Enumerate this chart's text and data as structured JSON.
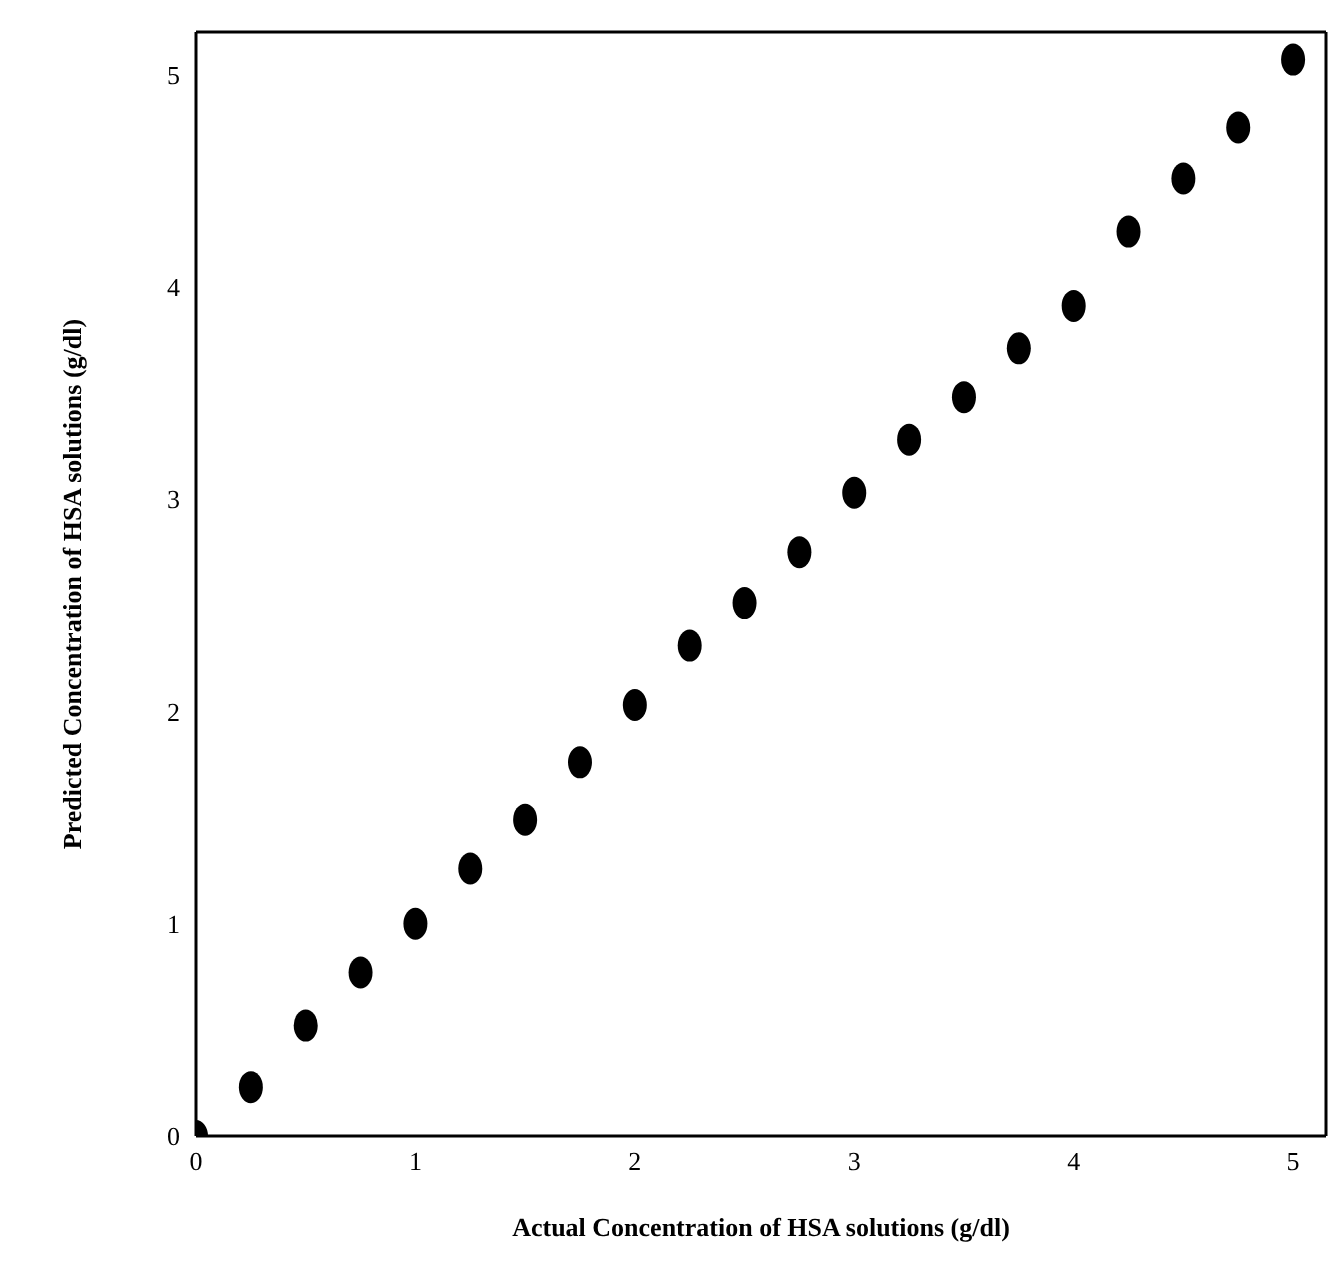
{
  "chart_data": {
    "type": "scatter",
    "xlabel": "Actual  Concentration  of  HSA  solutions (g/dl)",
    "ylabel": "Predicted  Concentration  of  HSA solutions (g/dl)",
    "x": [
      0,
      0.25,
      0.5,
      0.75,
      1,
      1.25,
      1.5,
      1.75,
      2,
      2.25,
      2.5,
      2.75,
      3,
      3.25,
      3.5,
      3.75,
      4,
      4.25,
      4.5,
      4.75,
      5
    ],
    "series": [
      {
        "color": "#000000",
        "values": [
          0,
          0.23,
          0.52,
          0.77,
          1,
          1.26,
          1.49,
          1.76,
          2.03,
          2.31,
          2.51,
          2.75,
          3.03,
          3.28,
          3.48,
          3.71,
          3.91,
          4.26,
          4.51,
          4.75,
          5.07
        ]
      }
    ],
    "xlim": [
      0,
      5.15
    ],
    "ylim": [
      0,
      5.2
    ],
    "xticks": [
      0,
      1,
      2,
      3,
      4,
      5
    ],
    "yticks": [
      0,
      1,
      2,
      3,
      4,
      5
    ],
    "marker": "circle"
  }
}
